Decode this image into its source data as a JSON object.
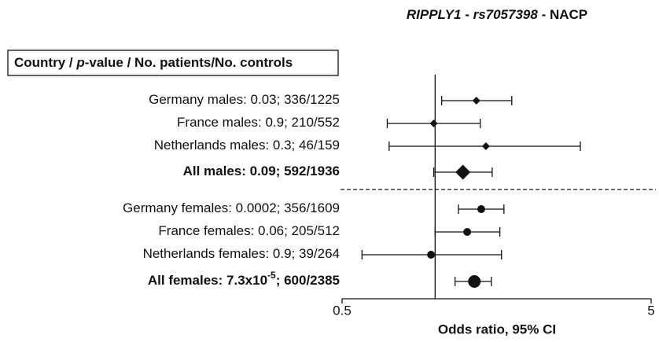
{
  "chart_data": {
    "type": "forest",
    "title": [
      "RIPPLY1",
      " - ",
      "rs7057398",
      " - NACP"
    ],
    "header": [
      "Country / ",
      "p",
      "-value / No. patients/No. controls"
    ],
    "xlabel": "Odds ratio, 95% CI",
    "xscale": "log",
    "xlim": [
      0.5,
      5
    ],
    "xticks": [
      0.5,
      5
    ],
    "reference": 1,
    "groups": [
      {
        "marker": "diamond",
        "rows": [
          {
            "label": [
              "Germany males:  0.03;  336/1225"
            ],
            "value": 1.36,
            "lo": 1.05,
            "hi": 1.77
          },
          {
            "label": [
              "France males:  0.9;  210/552"
            ],
            "value": 0.99,
            "lo": 0.7,
            "hi": 1.4
          },
          {
            "label": [
              "Netherlands males: 0.3; 46/159"
            ],
            "value": 1.46,
            "lo": 0.71,
            "hi": 2.95
          },
          {
            "label": [
              "All males:  0.09;  592/1936"
            ],
            "value": 1.23,
            "lo": 0.99,
            "hi": 1.53,
            "summary": true
          }
        ]
      },
      {
        "marker": "circle",
        "rows": [
          {
            "label": [
              "Germany females:   0.0002;  356/1609"
            ],
            "value": 1.41,
            "lo": 1.19,
            "hi": 1.67
          },
          {
            "label": [
              "France females:  0.06;  205/512"
            ],
            "value": 1.27,
            "lo": 1.0,
            "hi": 1.62
          },
          {
            "label": [
              "Netherlands females: 0.9; 39/264"
            ],
            "value": 0.97,
            "lo": 0.58,
            "hi": 1.64
          },
          {
            "label": [
              "All females:  7.3x10",
              "-5",
              ";  600/2385"
            ],
            "value": 1.34,
            "lo": 1.16,
            "hi": 1.52,
            "summary": true
          }
        ]
      }
    ]
  }
}
